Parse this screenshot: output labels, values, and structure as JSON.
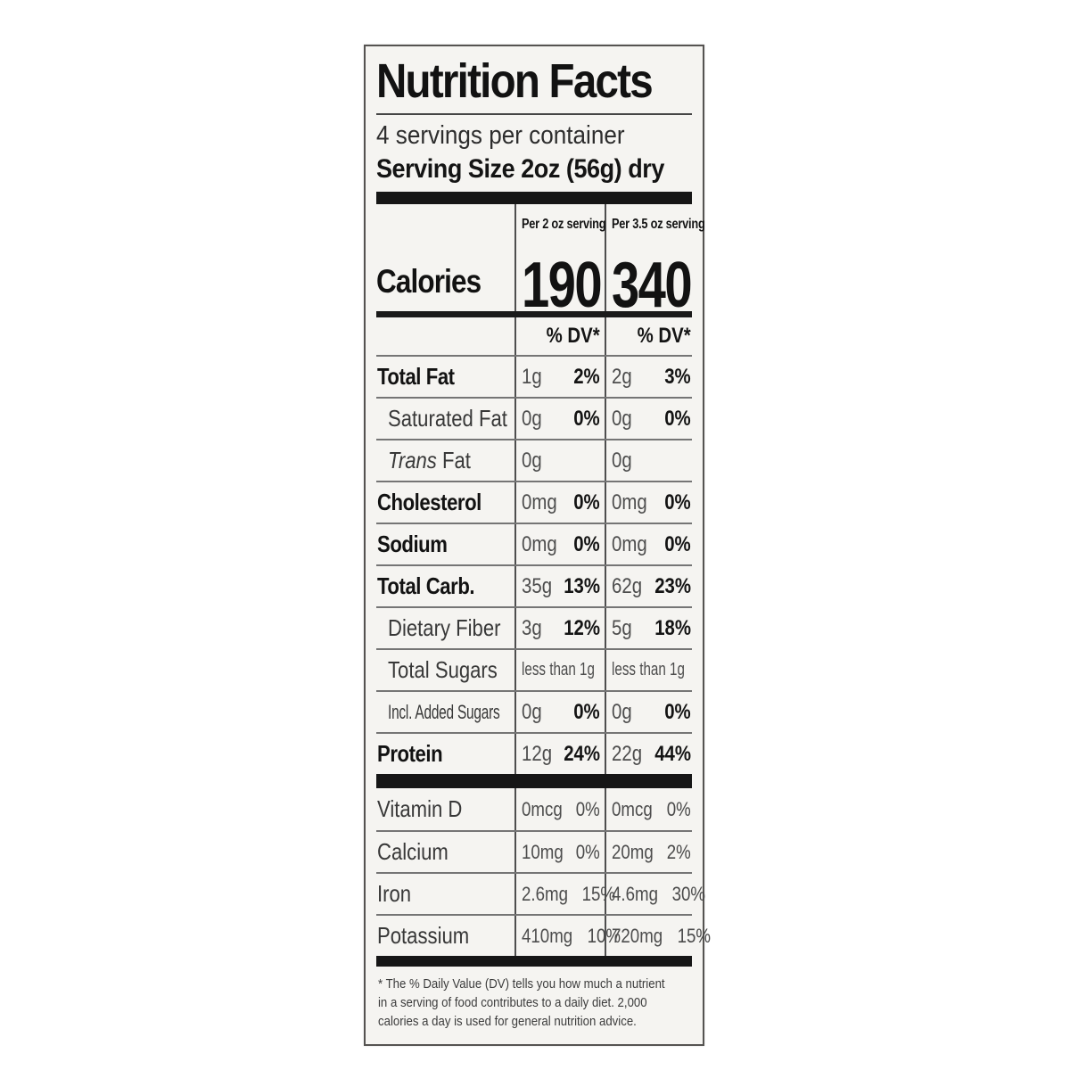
{
  "label": {
    "title": "Nutrition Facts",
    "servings_per_container": "4 servings per container",
    "serving_size": "Serving Size 2oz (56g) dry",
    "calories_label": "Calories",
    "dv_header": "% DV*",
    "columns": [
      {
        "header": "Per 2 oz serving",
        "calories": "190"
      },
      {
        "header": "Per 3.5 oz serving",
        "calories": "340"
      }
    ],
    "nutrients": [
      {
        "name": "Total Fat",
        "style": "bold",
        "cols": [
          {
            "amt": "1g",
            "dv": "2%"
          },
          {
            "amt": "2g",
            "dv": "3%"
          }
        ]
      },
      {
        "name": "Saturated Fat",
        "style": "indent",
        "cols": [
          {
            "amt": "0g",
            "dv": "0%"
          },
          {
            "amt": "0g",
            "dv": "0%"
          }
        ]
      },
      {
        "name": " Fat",
        "name_italic": "Trans",
        "style": "indent",
        "cols": [
          {
            "amt": "0g",
            "dv": ""
          },
          {
            "amt": "0g",
            "dv": ""
          }
        ]
      },
      {
        "name": "Cholesterol",
        "style": "bold",
        "cols": [
          {
            "amt": "0mg",
            "dv": "0%"
          },
          {
            "amt": "0mg",
            "dv": "0%"
          }
        ]
      },
      {
        "name": "Sodium",
        "style": "bold",
        "cols": [
          {
            "amt": "0mg",
            "dv": "0%"
          },
          {
            "amt": "0mg",
            "dv": "0%"
          }
        ]
      },
      {
        "name": "Total Carb.",
        "style": "bold",
        "cols": [
          {
            "amt": "35g",
            "dv": "13%"
          },
          {
            "amt": "62g",
            "dv": "23%"
          }
        ]
      },
      {
        "name": "Dietary Fiber",
        "style": "indent",
        "cols": [
          {
            "amt": "3g",
            "dv": "12%"
          },
          {
            "amt": "5g",
            "dv": "18%"
          }
        ]
      },
      {
        "name": "Total Sugars",
        "style": "indent",
        "narrow_amt": true,
        "cols": [
          {
            "amt": "less than 1g",
            "dv": ""
          },
          {
            "amt": "less than 1g",
            "dv": ""
          }
        ]
      },
      {
        "name": "Incl. Added Sugars",
        "style": "indent narrow",
        "cols": [
          {
            "amt": "0g",
            "dv": "0%"
          },
          {
            "amt": "0g",
            "dv": "0%"
          }
        ]
      },
      {
        "name": "Protein",
        "style": "bold",
        "cols": [
          {
            "amt": "12g",
            "dv": "24%"
          },
          {
            "amt": "22g",
            "dv": "44%"
          }
        ]
      }
    ],
    "vitamins": [
      {
        "name": "Vitamin D",
        "cols": [
          {
            "amt": "0mcg",
            "dv": "0%"
          },
          {
            "amt": "0mcg",
            "dv": "0%"
          }
        ]
      },
      {
        "name": "Calcium",
        "cols": [
          {
            "amt": "10mg",
            "dv": "0%"
          },
          {
            "amt": "20mg",
            "dv": "2%"
          }
        ]
      },
      {
        "name": "Iron",
        "cols": [
          {
            "amt": "2.6mg",
            "dv": "15%"
          },
          {
            "amt": "4.6mg",
            "dv": "30%"
          }
        ]
      },
      {
        "name": "Potassium",
        "cols": [
          {
            "amt": "410mg",
            "dv": "10%"
          },
          {
            "amt": "720mg",
            "dv": "15%"
          }
        ]
      }
    ],
    "footnote_lines": [
      "* The % Daily Value (DV) tells you how much a nutrient",
      "in a serving of food contributes to a daily diet. 2,000",
      "calories a day is used for general nutrition advice."
    ],
    "colors": {
      "label_background": "#f5f4f1",
      "border": "#555351",
      "bar": "#161616",
      "text": "#161616",
      "muted_value_text": "#4d4d4d"
    }
  }
}
